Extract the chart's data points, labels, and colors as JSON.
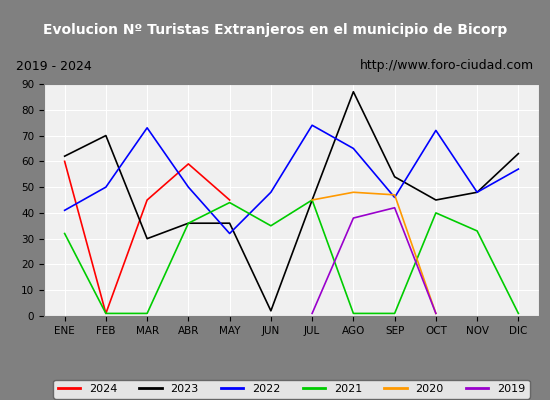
{
  "title": "Evolucion Nº Turistas Extranjeros en el municipio de Bicorp",
  "subtitle_left": "2019 - 2024",
  "subtitle_right": "http://www.foro-ciudad.com",
  "x_labels": [
    "ENE",
    "FEB",
    "MAR",
    "ABR",
    "MAY",
    "JUN",
    "JUL",
    "AGO",
    "SEP",
    "OCT",
    "NOV",
    "DIC"
  ],
  "ylim": [
    0,
    90
  ],
  "yticks": [
    0,
    10,
    20,
    30,
    40,
    50,
    60,
    70,
    80,
    90
  ],
  "series": {
    "2024": {
      "color": "#ff0000",
      "values": [
        60,
        1,
        45,
        59,
        45,
        null,
        null,
        null,
        null,
        null,
        null,
        null
      ]
    },
    "2023": {
      "color": "#000000",
      "values": [
        62,
        70,
        30,
        36,
        36,
        2,
        45,
        87,
        54,
        45,
        48,
        63
      ]
    },
    "2022": {
      "color": "#0000ff",
      "values": [
        41,
        50,
        73,
        50,
        32,
        48,
        74,
        65,
        46,
        72,
        48,
        57
      ]
    },
    "2021": {
      "color": "#00cc00",
      "values": [
        32,
        1,
        1,
        36,
        44,
        35,
        45,
        1,
        1,
        40,
        33,
        1
      ]
    },
    "2020": {
      "color": "#ff9900",
      "values": [
        null,
        null,
        null,
        null,
        null,
        null,
        45,
        48,
        47,
        1,
        null,
        null
      ]
    },
    "2019": {
      "color": "#9900cc",
      "values": [
        null,
        null,
        null,
        null,
        null,
        null,
        1,
        38,
        42,
        1,
        null,
        null
      ]
    }
  },
  "title_bg_color": "#4472c4",
  "title_font_color": "#ffffff",
  "subtitle_bg_color": "#e0e0e0",
  "plot_bg_color": "#f0f0f0",
  "border_color": "#808080",
  "grid_color": "#ffffff",
  "legend_order": [
    "2024",
    "2023",
    "2022",
    "2021",
    "2020",
    "2019"
  ]
}
